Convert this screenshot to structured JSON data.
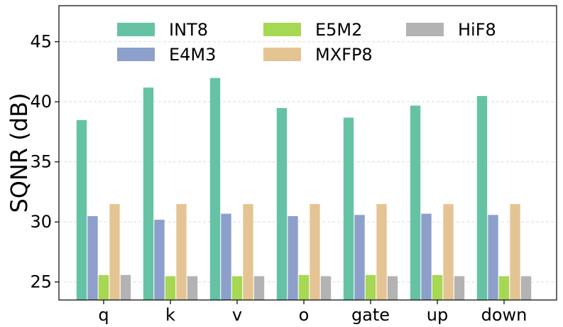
{
  "chart_data": {
    "type": "bar",
    "categories": [
      "q",
      "k",
      "v",
      "o",
      "gate",
      "up",
      "down"
    ],
    "ylabel": "SQNR (dB)",
    "xlabel": "",
    "ylim": [
      23.5,
      48
    ],
    "yticks": [
      25,
      30,
      35,
      40,
      45
    ],
    "grid": true,
    "legend_position": "top",
    "series": [
      {
        "name": "INT8",
        "color": "#66c2a5",
        "values": [
          38.5,
          41.2,
          42.0,
          39.5,
          38.7,
          39.7,
          40.5
        ]
      },
      {
        "name": "E4M3",
        "color": "#8da0cb",
        "values": [
          30.5,
          30.2,
          30.7,
          30.5,
          30.6,
          30.7,
          30.6
        ]
      },
      {
        "name": "E5M2",
        "color": "#a6d854",
        "values": [
          25.6,
          25.5,
          25.5,
          25.6,
          25.6,
          25.6,
          25.5
        ]
      },
      {
        "name": "MXFP8",
        "color": "#e5c494",
        "values": [
          31.5,
          31.5,
          31.5,
          31.5,
          31.5,
          31.5,
          31.5
        ]
      },
      {
        "name": "HiF8",
        "color": "#b3b3b3",
        "values": [
          25.6,
          25.5,
          25.5,
          25.5,
          25.5,
          25.5,
          25.5
        ]
      }
    ]
  }
}
